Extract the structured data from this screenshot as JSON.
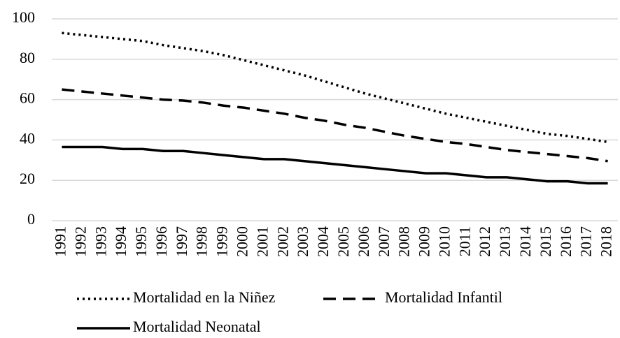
{
  "chart_data": {
    "type": "line",
    "categories": [
      "1991",
      "1992",
      "1993",
      "1994",
      "1995",
      "1996",
      "1997",
      "1998",
      "1999",
      "2000",
      "2001",
      "2002",
      "2003",
      "2004",
      "2005",
      "2006",
      "2007",
      "2008",
      "2009",
      "2010",
      "2011",
      "2012",
      "2013",
      "2014",
      "2015",
      "2016",
      "2017",
      "2018"
    ],
    "series": [
      {
        "name": "Mortalidad en la Niñez",
        "color": "#000000",
        "dash": "dotted",
        "values": [
          93,
          92,
          91,
          90,
          89,
          87,
          85.5,
          84,
          82,
          79.5,
          77,
          74.5,
          72,
          69,
          66,
          63,
          60.5,
          58,
          55.5,
          53,
          51,
          49,
          47,
          45,
          43,
          42,
          40.5,
          39
        ]
      },
      {
        "name": "Mortalidad Infantil",
        "color": "#000000",
        "dash": "dashed",
        "values": [
          65,
          64,
          63,
          62,
          61,
          60,
          59.5,
          58.5,
          57,
          56,
          54.5,
          53,
          51,
          49.5,
          47.5,
          46,
          44,
          42,
          40.5,
          39,
          38,
          36.5,
          35,
          34,
          33,
          32,
          31,
          29.5
        ]
      },
      {
        "name": "Mortalidad Neonatal",
        "color": "#000000",
        "dash": "solid",
        "values": [
          36.5,
          36.5,
          36.5,
          35.5,
          35.5,
          34.5,
          34.5,
          33.5,
          32.5,
          31.5,
          30.5,
          30.5,
          29.5,
          28.5,
          27.5,
          26.5,
          25.5,
          24.5,
          23.5,
          23.5,
          22.5,
          21.5,
          21.5,
          20.5,
          19.5,
          19.5,
          18.5,
          18.5
        ]
      }
    ],
    "ylim": [
      0,
      100
    ],
    "yticks": [
      0,
      20,
      40,
      60,
      80,
      100
    ],
    "grid": true
  }
}
